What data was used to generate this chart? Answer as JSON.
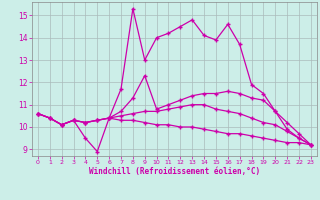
{
  "xlabel": "Windchill (Refroidissement éolien,°C)",
  "bg_color": "#cceee8",
  "line_color": "#cc00aa",
  "grid_color": "#aabbbb",
  "xlim": [
    -0.5,
    23.5
  ],
  "ylim": [
    8.7,
    15.6
  ],
  "yticks": [
    9,
    10,
    11,
    12,
    13,
    14,
    15
  ],
  "xticks": [
    0,
    1,
    2,
    3,
    4,
    5,
    6,
    7,
    8,
    9,
    10,
    11,
    12,
    13,
    14,
    15,
    16,
    17,
    18,
    19,
    20,
    21,
    22,
    23
  ],
  "lines": [
    {
      "x": [
        0,
        1,
        2,
        3,
        4,
        5,
        6,
        7,
        8,
        9,
        10,
        11,
        12,
        13,
        14,
        15,
        16,
        17,
        18,
        19,
        20,
        21,
        22,
        23
      ],
      "y": [
        10.6,
        10.4,
        10.1,
        10.3,
        9.5,
        8.9,
        10.4,
        11.7,
        15.3,
        13.0,
        14.0,
        14.2,
        14.5,
        14.8,
        14.1,
        13.9,
        14.6,
        13.7,
        11.9,
        11.5,
        10.7,
        9.9,
        9.5,
        9.2
      ]
    },
    {
      "x": [
        0,
        1,
        2,
        3,
        4,
        5,
        6,
        7,
        8,
        9,
        10,
        11,
        12,
        13,
        14,
        15,
        16,
        17,
        18,
        19,
        20,
        21,
        22,
        23
      ],
      "y": [
        10.6,
        10.4,
        10.1,
        10.3,
        10.2,
        10.3,
        10.4,
        10.7,
        11.3,
        12.3,
        10.8,
        11.0,
        11.2,
        11.4,
        11.5,
        11.5,
        11.6,
        11.5,
        11.3,
        11.2,
        10.7,
        10.2,
        9.7,
        9.2
      ]
    },
    {
      "x": [
        0,
        1,
        2,
        3,
        4,
        5,
        6,
        7,
        8,
        9,
        10,
        11,
        12,
        13,
        14,
        15,
        16,
        17,
        18,
        19,
        20,
        21,
        22,
        23
      ],
      "y": [
        10.6,
        10.4,
        10.1,
        10.3,
        10.2,
        10.3,
        10.4,
        10.5,
        10.6,
        10.7,
        10.7,
        10.8,
        10.9,
        11.0,
        11.0,
        10.8,
        10.7,
        10.6,
        10.4,
        10.2,
        10.1,
        9.8,
        9.5,
        9.2
      ]
    },
    {
      "x": [
        0,
        1,
        2,
        3,
        4,
        5,
        6,
        7,
        8,
        9,
        10,
        11,
        12,
        13,
        14,
        15,
        16,
        17,
        18,
        19,
        20,
        21,
        22,
        23
      ],
      "y": [
        10.6,
        10.4,
        10.1,
        10.3,
        10.2,
        10.3,
        10.4,
        10.3,
        10.3,
        10.2,
        10.1,
        10.1,
        10.0,
        10.0,
        9.9,
        9.8,
        9.7,
        9.7,
        9.6,
        9.5,
        9.4,
        9.3,
        9.3,
        9.2
      ]
    }
  ]
}
